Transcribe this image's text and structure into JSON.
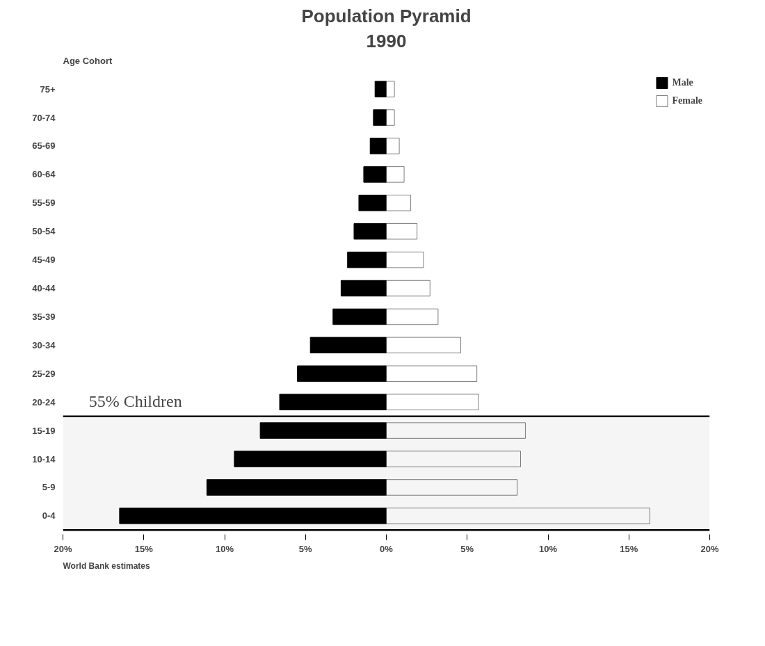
{
  "chart_data": {
    "type": "bar",
    "orientation": "horizontal",
    "title": "Population Pyramid",
    "subtitle": "1990",
    "ylabel": "Age Cohort",
    "categories": [
      "75+",
      "70-74",
      "65-69",
      "60-64",
      "55-59",
      "50-54",
      "45-49",
      "40-44",
      "35-39",
      "30-34",
      "25-29",
      "20-24",
      "15-19",
      "10-14",
      "5-9",
      "0-4"
    ],
    "series": [
      {
        "name": "Male",
        "color": "#000000",
        "values": [
          -0.7,
          -0.8,
          -1.0,
          -1.4,
          -1.7,
          -2.0,
          -2.4,
          -2.8,
          -3.3,
          -4.7,
          -5.5,
          -6.6,
          -7.8,
          -9.4,
          -11.1,
          -16.5
        ]
      },
      {
        "name": "Female",
        "color": "#ffffff",
        "values": [
          0.5,
          0.5,
          0.8,
          1.1,
          1.5,
          1.9,
          2.3,
          2.7,
          3.2,
          4.6,
          5.6,
          5.7,
          8.6,
          8.3,
          8.1,
          16.3
        ]
      }
    ],
    "xlim": [
      -20,
      20
    ],
    "xticks": [
      {
        "value": -20,
        "label": "20%"
      },
      {
        "value": -15,
        "label": "15%"
      },
      {
        "value": -10,
        "label": "10%"
      },
      {
        "value": -5,
        "label": "5%"
      },
      {
        "value": 0,
        "label": "0%"
      },
      {
        "value": 5,
        "label": "5%"
      },
      {
        "value": 10,
        "label": "10%"
      },
      {
        "value": 15,
        "label": "15%"
      },
      {
        "value": 20,
        "label": "20%"
      }
    ],
    "bands": [
      {
        "axis": "y",
        "from": "15-19",
        "to": "0-4",
        "label": "55% Children",
        "color": "#000000"
      }
    ],
    "annotations": [
      "World Bank estimates"
    ],
    "stacked": true,
    "grid": false,
    "legend": "top right"
  }
}
